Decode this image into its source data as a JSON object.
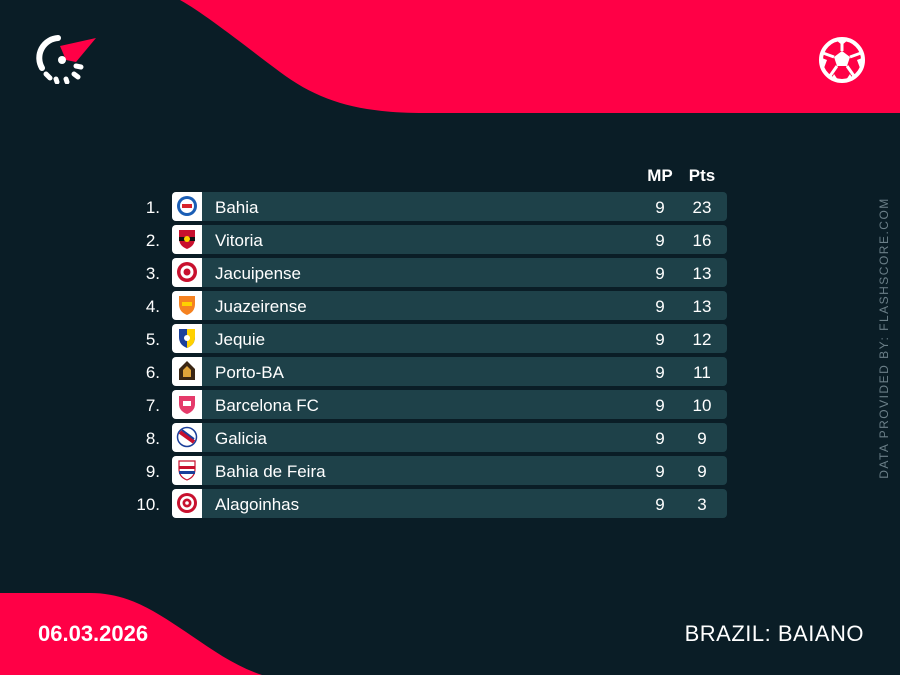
{
  "colors": {
    "background": "#0a1d26",
    "accent": "#ff0046",
    "row": "#1e4149"
  },
  "header": {
    "logo_icon": "flashscore-logo-icon",
    "sport_icon": "soccer-ball-icon"
  },
  "table": {
    "columns": {
      "mp": "MP",
      "pts": "Pts"
    },
    "rows": [
      {
        "rank": "1.",
        "team": "Bahia",
        "mp": "9",
        "pts": "23",
        "crest": "bahia-crest-icon"
      },
      {
        "rank": "2.",
        "team": "Vitoria",
        "mp": "9",
        "pts": "16",
        "crest": "vitoria-crest-icon"
      },
      {
        "rank": "3.",
        "team": "Jacuipense",
        "mp": "9",
        "pts": "13",
        "crest": "jacuipense-crest-icon"
      },
      {
        "rank": "4.",
        "team": "Juazeirense",
        "mp": "9",
        "pts": "13",
        "crest": "juazeirense-crest-icon"
      },
      {
        "rank": "5.",
        "team": "Jequie",
        "mp": "9",
        "pts": "12",
        "crest": "jequie-crest-icon"
      },
      {
        "rank": "6.",
        "team": "Porto-BA",
        "mp": "9",
        "pts": "11",
        "crest": "porto-ba-crest-icon"
      },
      {
        "rank": "7.",
        "team": "Barcelona FC",
        "mp": "9",
        "pts": "10",
        "crest": "barcelona-fc-crest-icon"
      },
      {
        "rank": "8.",
        "team": "Galicia",
        "mp": "9",
        "pts": "9",
        "crest": "galicia-crest-icon"
      },
      {
        "rank": "9.",
        "team": "Bahia de Feira",
        "mp": "9",
        "pts": "9",
        "crest": "bahia-de-feira-crest-icon"
      },
      {
        "rank": "10.",
        "team": "Alagoinhas",
        "mp": "9",
        "pts": "3",
        "crest": "alagoinhas-crest-icon"
      }
    ]
  },
  "footer": {
    "date": "06.03.2026",
    "league": "BRAZIL: BAIANO",
    "credit": "DATA PROVIDED BY: FLASHSCORE.COM"
  }
}
